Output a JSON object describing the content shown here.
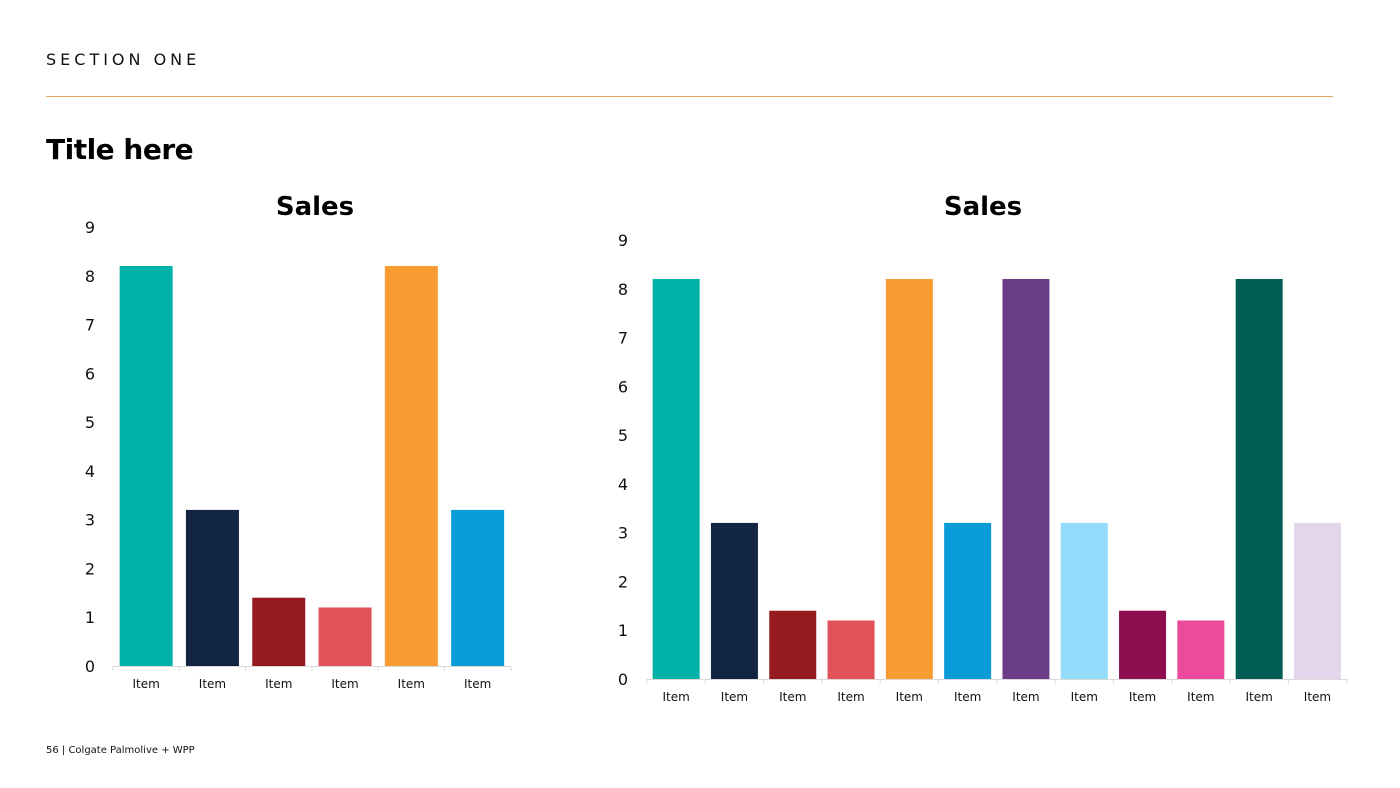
{
  "section_label": "SECTION ONE",
  "page_title": "Title here",
  "footer": "56 | Colgate Palmolive + WPP",
  "chart_data": [
    {
      "type": "bar",
      "title": "Sales",
      "categories": [
        "Item",
        "Item",
        "Item",
        "Item",
        "Item",
        "Item"
      ],
      "values": [
        8.2,
        3.2,
        1.4,
        1.2,
        8.2,
        3.2
      ],
      "colors": [
        "#00b2a7",
        "#122643",
        "#951b1e",
        "#e15358",
        "#f89b31",
        "#0a9cd9"
      ],
      "ylim": [
        0,
        9
      ],
      "yticks": [
        "0",
        "1",
        "2",
        "3",
        "4",
        "5",
        "6",
        "7",
        "8",
        "9"
      ],
      "xlabel": "",
      "ylabel": "",
      "grid": false
    },
    {
      "type": "bar",
      "title": "Sales",
      "categories": [
        "Item",
        "Item",
        "Item",
        "Item",
        "Item",
        "Item",
        "Item",
        "Item",
        "Item",
        "Item",
        "Item",
        "Item"
      ],
      "values": [
        8.2,
        3.2,
        1.4,
        1.2,
        8.2,
        3.2,
        8.2,
        3.2,
        1.4,
        1.2,
        8.2,
        3.2
      ],
      "colors": [
        "#00b2a7",
        "#122643",
        "#951b1e",
        "#e15358",
        "#f89b31",
        "#0a9cd9",
        "#6b3d88",
        "#93dbfa",
        "#8d0f4f",
        "#ec4a9c",
        "#005e55",
        "#e3d6eb"
      ],
      "ylim": [
        0,
        9
      ],
      "yticks": [
        "0",
        "1",
        "2",
        "3",
        "4",
        "5",
        "6",
        "7",
        "8",
        "9"
      ],
      "xlabel": "",
      "ylabel": "",
      "grid": false
    }
  ]
}
